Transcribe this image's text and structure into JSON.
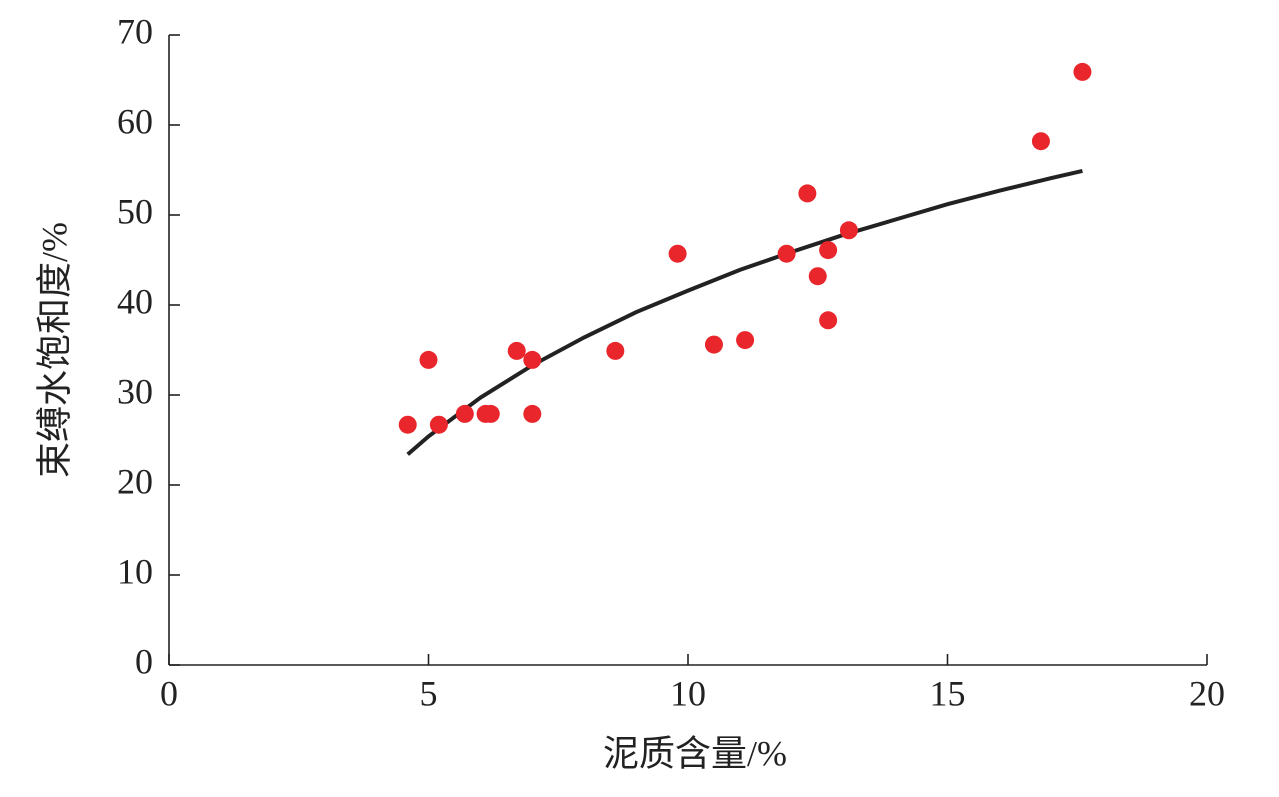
{
  "chart_data": {
    "type": "scatter",
    "x_label": "泥质含量/%",
    "y_label": "束缚水饱和度/%",
    "xlim": [
      0,
      20
    ],
    "xticks": [
      0,
      5,
      10,
      15,
      20
    ],
    "ylim": [
      0,
      70
    ],
    "yticks": [
      0,
      10,
      20,
      30,
      40,
      50,
      60,
      70
    ],
    "points": {
      "color": "#e8262b",
      "x": [
        4.6,
        5.0,
        5.2,
        5.7,
        6.1,
        6.2,
        6.7,
        7.0,
        7.0,
        8.6,
        9.8,
        10.5,
        11.1,
        11.9,
        12.3,
        12.5,
        12.7,
        12.7,
        13.1,
        16.8,
        17.6
      ],
      "y": [
        26.7,
        33.9,
        26.7,
        27.9,
        27.9,
        27.9,
        34.9,
        33.9,
        27.9,
        34.9,
        45.7,
        35.6,
        36.1,
        45.7,
        52.4,
        43.2,
        46.1,
        38.3,
        48.3,
        58.2,
        65.9
      ]
    },
    "fit": {
      "color": "#222222",
      "x": [
        4.6,
        5,
        6,
        7,
        8,
        9,
        10,
        11,
        12,
        13,
        14,
        15,
        16,
        17,
        17.6
      ],
      "y": [
        23.4,
        25.4,
        29.7,
        33.3,
        36.4,
        39.2,
        41.6,
        43.9,
        45.9,
        47.8,
        49.5,
        51.2,
        52.7,
        54.1,
        54.9
      ]
    }
  }
}
